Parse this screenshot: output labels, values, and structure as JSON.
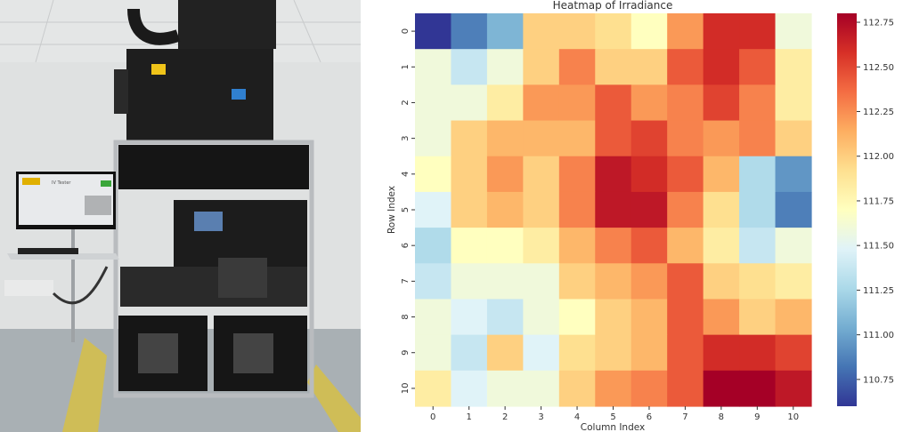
{
  "photo": {
    "monitor_title": "IV Tester"
  },
  "chart_data": {
    "type": "heatmap",
    "title": "Heatmap of Irradiance",
    "xlabel": "Column Index",
    "ylabel": "Row Index",
    "x_ticks": [
      "0",
      "1",
      "2",
      "3",
      "4",
      "5",
      "6",
      "7",
      "8",
      "9",
      "10"
    ],
    "y_ticks": [
      "0",
      "1",
      "2",
      "3",
      "4",
      "5",
      "6",
      "7",
      "8",
      "9",
      "10"
    ],
    "colormap": "RdYlBu_r",
    "vmin": 110.6,
    "vmax": 112.8,
    "colorbar_ticks": [
      110.75,
      111.0,
      111.25,
      111.5,
      111.75,
      112.0,
      112.25,
      112.5,
      112.75
    ],
    "colorbar_tick_labels": [
      "110.75",
      "111.00",
      "111.25",
      "111.50",
      "111.75",
      "112.00",
      "112.25",
      "112.50",
      "112.75"
    ],
    "values": [
      [
        110.6,
        110.86,
        111.08,
        111.99,
        111.99,
        111.92,
        111.7,
        112.21,
        112.6,
        112.6,
        111.59
      ],
      [
        111.59,
        111.37,
        111.59,
        111.99,
        112.29,
        111.99,
        111.99,
        112.43,
        112.6,
        112.43,
        111.83
      ],
      [
        111.59,
        111.59,
        111.83,
        112.21,
        112.21,
        112.43,
        112.21,
        112.29,
        112.51,
        112.29,
        111.83
      ],
      [
        111.59,
        111.99,
        112.1,
        112.1,
        112.1,
        112.43,
        112.51,
        112.29,
        112.21,
        112.29,
        111.99
      ],
      [
        111.7,
        111.99,
        112.21,
        111.99,
        112.29,
        112.69,
        112.6,
        112.43,
        112.1,
        111.28,
        110.95
      ],
      [
        111.48,
        111.99,
        112.1,
        111.99,
        112.29,
        112.69,
        112.69,
        112.29,
        111.92,
        111.28,
        110.86
      ],
      [
        111.28,
        111.7,
        111.7,
        111.83,
        112.1,
        112.29,
        112.43,
        112.1,
        111.83,
        111.37,
        111.59
      ],
      [
        111.37,
        111.59,
        111.59,
        111.59,
        111.99,
        112.1,
        112.21,
        112.43,
        111.99,
        111.92,
        111.83
      ],
      [
        111.59,
        111.48,
        111.37,
        111.59,
        111.7,
        111.99,
        112.1,
        112.43,
        112.21,
        111.99,
        112.1
      ],
      [
        111.59,
        111.37,
        111.99,
        111.48,
        111.92,
        111.99,
        112.1,
        112.43,
        112.6,
        112.6,
        112.51
      ],
      [
        111.83,
        111.48,
        111.59,
        111.59,
        111.99,
        112.21,
        112.29,
        112.43,
        112.8,
        112.8,
        112.69
      ]
    ]
  }
}
